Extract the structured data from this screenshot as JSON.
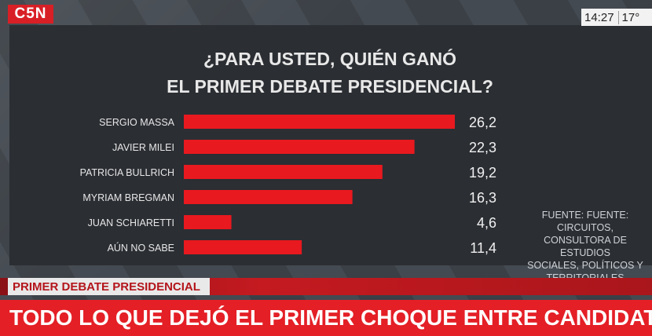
{
  "header": {
    "logo_text": "C5N",
    "time": "14:27",
    "temperature": "17°"
  },
  "chart_data": {
    "type": "bar",
    "orientation": "horizontal",
    "title_line1": "¿PARA USTED, QUIÉN GANÓ",
    "title_line2": "EL PRIMER DEBATE PRESIDENCIAL?",
    "categories": [
      "SERGIO MASSA",
      "JAVIER MILEI",
      "PATRICIA BULLRICH",
      "MYRIAM BREGMAN",
      "JUAN SCHIARETTI",
      "AÚN NO SABE"
    ],
    "values": [
      26.2,
      22.3,
      19.2,
      16.3,
      4.6,
      11.4
    ],
    "value_labels": [
      "26,2",
      "22,3",
      "19,2",
      "16,3",
      "4,6",
      "11,4"
    ],
    "bar_color": "#e8191f",
    "grid": false,
    "legend": "none"
  },
  "source": {
    "line1": "FUENTE: FUENTE:  CIRCUITOS,",
    "line2": "CONSULTORA DE ESTUDIOS",
    "line3": "SOCIALES, POLÍTICOS Y",
    "line4": "TERRITORIALES"
  },
  "ticker": {
    "section_label": "PRIMER DEBATE PRESIDENCIAL",
    "headline": "TODO LO QUE DEJÓ EL PRIMER CHOQUE ENTRE CANDIDATO"
  },
  "colors": {
    "brand_red": "#d81f26",
    "panel": "#2b2e33"
  }
}
